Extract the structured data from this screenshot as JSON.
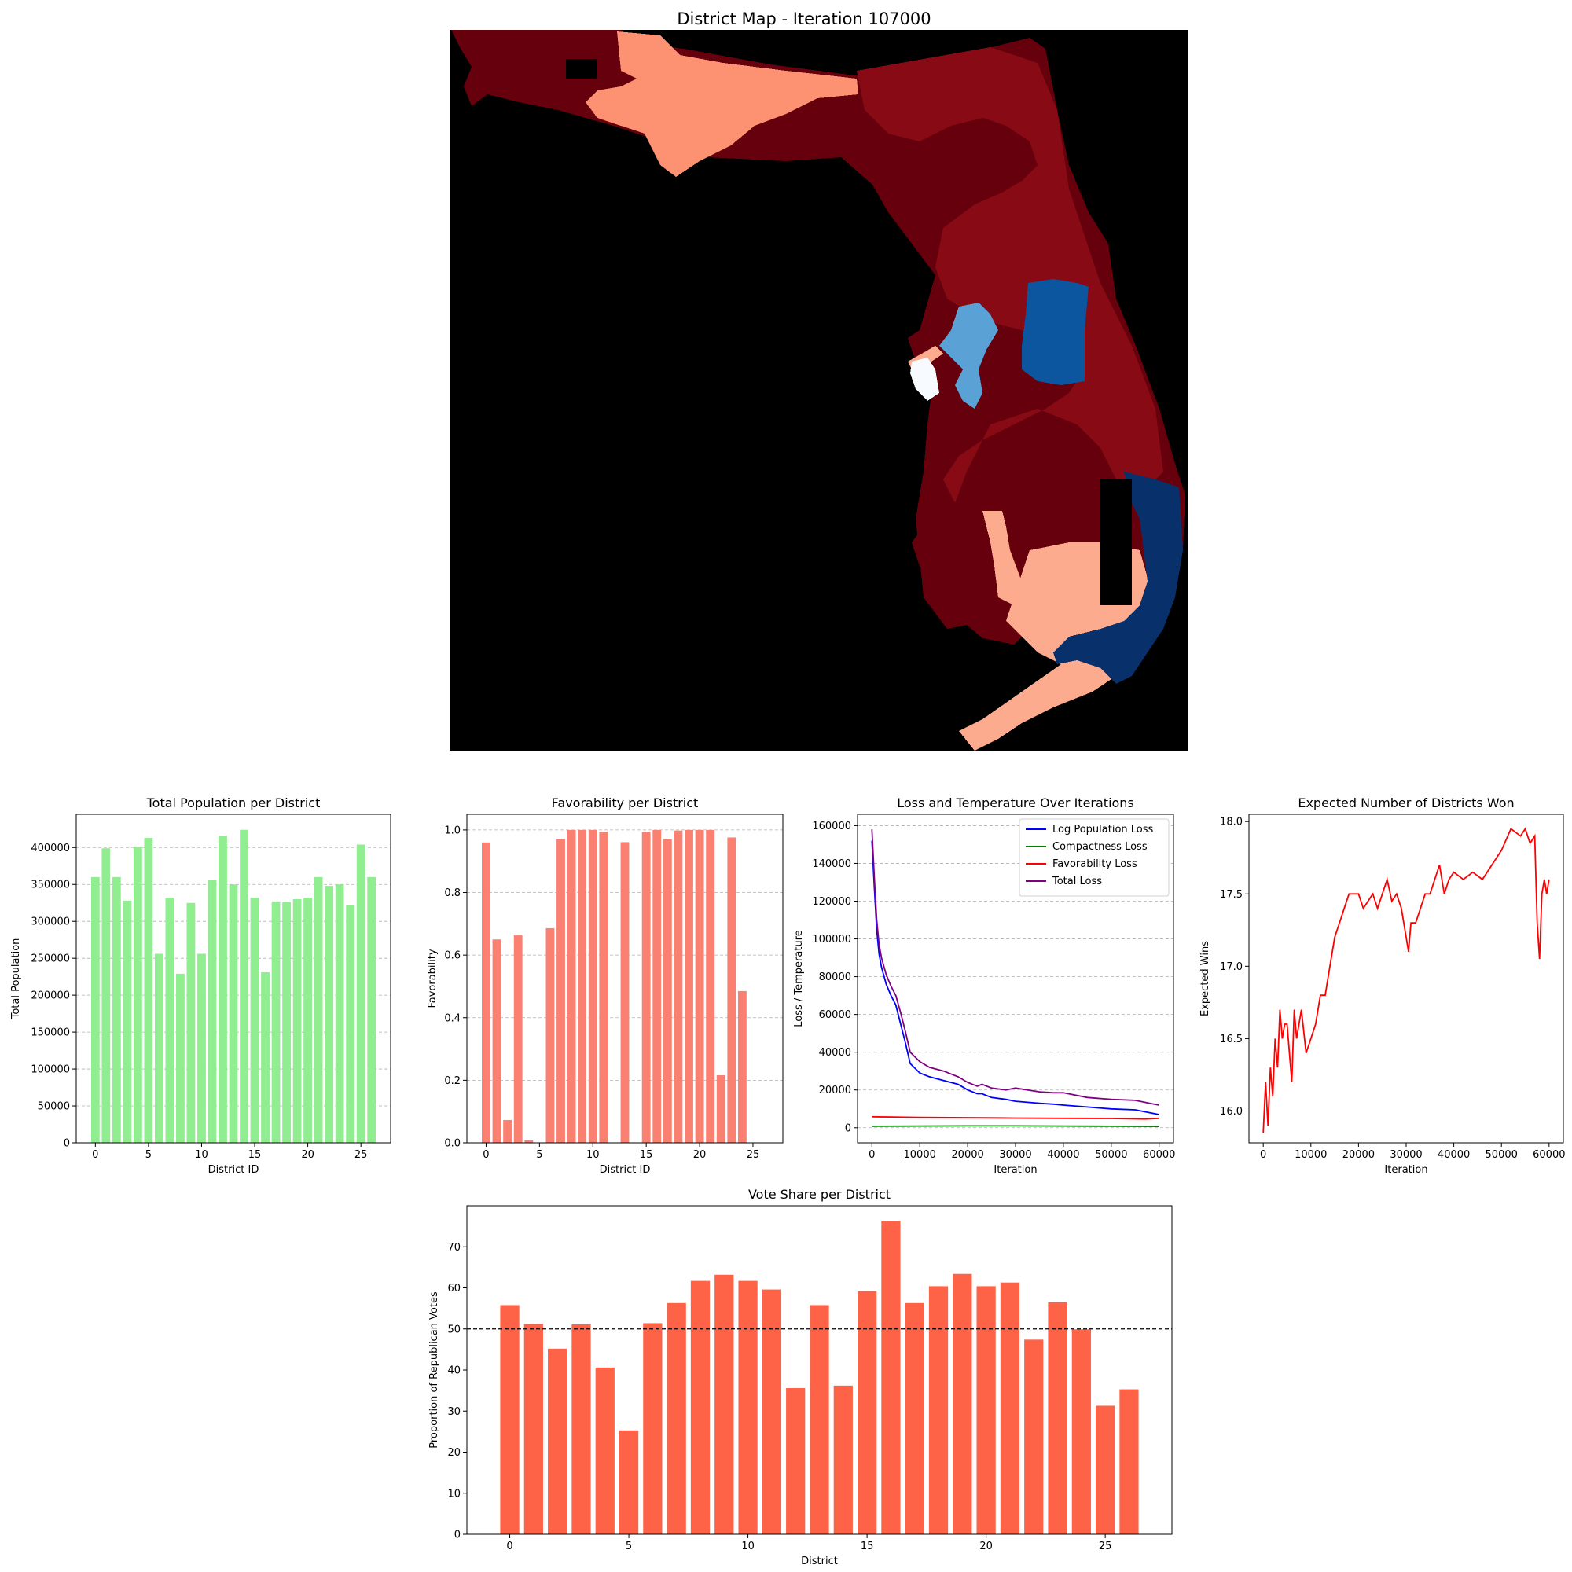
{
  "map": {
    "title": "District Map - Iteration 107000",
    "colors": {
      "background": "#000000",
      "dark_red": "#67000d",
      "red": "#870a14",
      "salmon": "#fc9272",
      "light_salmon": "#fcab8f",
      "light_blue": "#5aa2d6",
      "blue": "#0c56a0",
      "navy": "#08306b",
      "white": "#f7fbff"
    }
  },
  "chart_data": [
    {
      "id": "population",
      "type": "bar",
      "title": "Total Population per District",
      "xlabel": "District ID",
      "ylabel": "Total Population",
      "categories": [
        0,
        1,
        2,
        3,
        4,
        5,
        6,
        7,
        8,
        9,
        10,
        11,
        12,
        13,
        14,
        15,
        16,
        17,
        18,
        19,
        20,
        21,
        22,
        23,
        24,
        25,
        26
      ],
      "values": [
        360000,
        399000,
        360000,
        328000,
        401000,
        413000,
        256000,
        332000,
        229000,
        325000,
        256000,
        356000,
        416000,
        350000,
        424000,
        332000,
        231000,
        327000,
        326000,
        330000,
        332000,
        360000,
        348000,
        350000,
        322000,
        404000,
        360000
      ],
      "xlim": [
        -1.8,
        27.8
      ],
      "ylim": [
        0,
        445000
      ],
      "xticks": [
        0,
        5,
        10,
        15,
        20,
        25
      ],
      "yticks": [
        0,
        50000,
        100000,
        150000,
        200000,
        250000,
        300000,
        350000,
        400000
      ],
      "grid": "y-dashed",
      "color": "#90ee90"
    },
    {
      "id": "favorability",
      "type": "bar",
      "title": "Favorability per District",
      "xlabel": "District ID",
      "ylabel": "Favorability",
      "categories": [
        0,
        1,
        2,
        3,
        4,
        5,
        6,
        7,
        8,
        9,
        10,
        11,
        12,
        13,
        14,
        15,
        16,
        17,
        18,
        19,
        20,
        21,
        22,
        23,
        24,
        25,
        26
      ],
      "values": [
        0.96,
        0.65,
        0.073,
        0.663,
        0.008,
        0.0,
        0.686,
        0.971,
        1.0,
        1.0,
        1.0,
        0.994,
        0.0,
        0.961,
        0.0,
        0.994,
        1.0,
        0.97,
        0.998,
        1.0,
        1.0,
        1.0,
        0.216,
        0.976,
        0.485,
        0.0,
        0.0
      ],
      "xlim": [
        -1.8,
        27.8
      ],
      "ylim": [
        0,
        1.05
      ],
      "xticks": [
        0,
        5,
        10,
        15,
        20,
        25
      ],
      "yticks": [
        0.0,
        0.2,
        0.4,
        0.6,
        0.8,
        1.0
      ],
      "grid": "y-dashed",
      "color": "#fa8072"
    },
    {
      "id": "loss",
      "type": "line",
      "title": "Loss and Temperature Over Iterations",
      "xlabel": "Iteration",
      "ylabel": "Loss / Temperature",
      "xlim": [
        -3000,
        63000
      ],
      "ylim": [
        -8000,
        166000
      ],
      "xticks": [
        0,
        10000,
        20000,
        30000,
        40000,
        50000,
        60000
      ],
      "yticks": [
        0,
        20000,
        40000,
        60000,
        80000,
        100000,
        120000,
        140000,
        160000
      ],
      "grid": "y-dashed",
      "legend": "top-right",
      "series": [
        {
          "name": "Log Population Loss",
          "color": "#0000ff",
          "x": [
            0,
            500,
            1000,
            1500,
            2000,
            3000,
            4000,
            5000,
            6000,
            7000,
            8000,
            10000,
            12000,
            15000,
            18000,
            20000,
            22000,
            23000,
            25000,
            28000,
            30000,
            35000,
            38000,
            40000,
            45000,
            50000,
            55000,
            58000,
            60000
          ],
          "y": [
            152000,
            128000,
            105000,
            92000,
            85000,
            76000,
            70000,
            65000,
            55000,
            45000,
            34000,
            29000,
            27000,
            25000,
            23000,
            20000,
            18000,
            18000,
            16000,
            15000,
            14000,
            13000,
            12500,
            12000,
            11000,
            10000,
            9500,
            8000,
            7000
          ]
        },
        {
          "name": "Compactness Loss",
          "color": "#008000",
          "x": [
            0,
            10000,
            20000,
            30000,
            40000,
            50000,
            60000
          ],
          "y": [
            800,
            900,
            1000,
            1000,
            900,
            800,
            700
          ]
        },
        {
          "name": "Favorability Loss",
          "color": "#ff0000",
          "x": [
            0,
            10000,
            20000,
            30000,
            40000,
            50000,
            57000,
            60000
          ],
          "y": [
            5800,
            5500,
            5300,
            5100,
            5000,
            4900,
            4600,
            5000
          ]
        },
        {
          "name": "Total Loss",
          "color": "#800080",
          "x": [
            0,
            500,
            1000,
            1500,
            2000,
            3000,
            4000,
            5000,
            6000,
            7000,
            8000,
            10000,
            12000,
            15000,
            18000,
            20000,
            22000,
            23000,
            25000,
            28000,
            30000,
            35000,
            38000,
            40000,
            45000,
            50000,
            55000,
            58000,
            60000
          ],
          "y": [
            158000,
            133000,
            110000,
            97000,
            90000,
            81000,
            75000,
            70000,
            61000,
            51000,
            40000,
            35000,
            32000,
            30000,
            27000,
            24000,
            22000,
            23000,
            21000,
            20000,
            21000,
            19000,
            18500,
            18500,
            16000,
            15000,
            14500,
            13000,
            12000
          ]
        }
      ]
    },
    {
      "id": "wins",
      "type": "line",
      "title": "Expected Number of Districts Won",
      "xlabel": "Iteration",
      "ylabel": "Expected Wins",
      "xlim": [
        -3000,
        63000
      ],
      "ylim": [
        15.78,
        18.05
      ],
      "xticks": [
        0,
        10000,
        20000,
        30000,
        40000,
        50000,
        60000
      ],
      "yticks": [
        16.0,
        16.5,
        17.0,
        17.5,
        18.0
      ],
      "grid": "none",
      "series": [
        {
          "color": "#ff0000",
          "x": [
            0,
            500,
            1000,
            1500,
            2000,
            2500,
            3000,
            3500,
            4000,
            4500,
            5000,
            6000,
            6500,
            7000,
            8000,
            9000,
            10000,
            11000,
            12000,
            13000,
            14000,
            15000,
            16000,
            17000,
            18000,
            19000,
            20000,
            21000,
            22000,
            23000,
            24000,
            25000,
            26000,
            27000,
            28000,
            29000,
            30000,
            30500,
            31000,
            32000,
            33000,
            34000,
            35000,
            36000,
            37000,
            38000,
            39000,
            40000,
            42000,
            44000,
            46000,
            48000,
            50000,
            52000,
            54000,
            55000,
            56000,
            57000,
            57500,
            58000,
            58500,
            59000,
            59500,
            60000
          ],
          "y": [
            15.85,
            16.2,
            15.9,
            16.3,
            16.1,
            16.5,
            16.3,
            16.7,
            16.5,
            16.6,
            16.6,
            16.2,
            16.7,
            16.5,
            16.7,
            16.4,
            16.5,
            16.6,
            16.8,
            16.8,
            17.0,
            17.2,
            17.3,
            17.4,
            17.5,
            17.5,
            17.5,
            17.4,
            17.45,
            17.5,
            17.4,
            17.5,
            17.6,
            17.45,
            17.5,
            17.4,
            17.2,
            17.1,
            17.3,
            17.3,
            17.4,
            17.5,
            17.5,
            17.6,
            17.7,
            17.5,
            17.6,
            17.65,
            17.6,
            17.65,
            17.6,
            17.7,
            17.8,
            17.95,
            17.9,
            17.95,
            17.85,
            17.9,
            17.3,
            17.05,
            17.5,
            17.6,
            17.5,
            17.6
          ]
        }
      ]
    },
    {
      "id": "votes",
      "type": "bar",
      "title": "Vote Share per District",
      "xlabel": "District",
      "ylabel": "Proportion of Republican Votes",
      "categories": [
        0,
        1,
        2,
        3,
        4,
        5,
        6,
        7,
        8,
        9,
        10,
        11,
        12,
        13,
        14,
        15,
        16,
        17,
        18,
        19,
        20,
        21,
        22,
        23,
        24,
        25,
        26
      ],
      "values": [
        55.8,
        51.2,
        45.2,
        51.1,
        40.6,
        25.3,
        51.4,
        56.3,
        61.7,
        63.2,
        61.7,
        59.6,
        35.6,
        55.8,
        36.2,
        59.2,
        76.3,
        56.3,
        60.4,
        63.4,
        60.4,
        61.3,
        47.4,
        56.5,
        49.9,
        31.3,
        35.3
      ],
      "xlim": [
        -1.8,
        27.8
      ],
      "ylim": [
        0,
        80
      ],
      "xticks": [
        0,
        5,
        10,
        15,
        20,
        25
      ],
      "yticks": [
        0,
        10,
        20,
        30,
        40,
        50,
        60,
        70
      ],
      "grid": "none",
      "hline": 50,
      "color": "#ff6347"
    }
  ]
}
